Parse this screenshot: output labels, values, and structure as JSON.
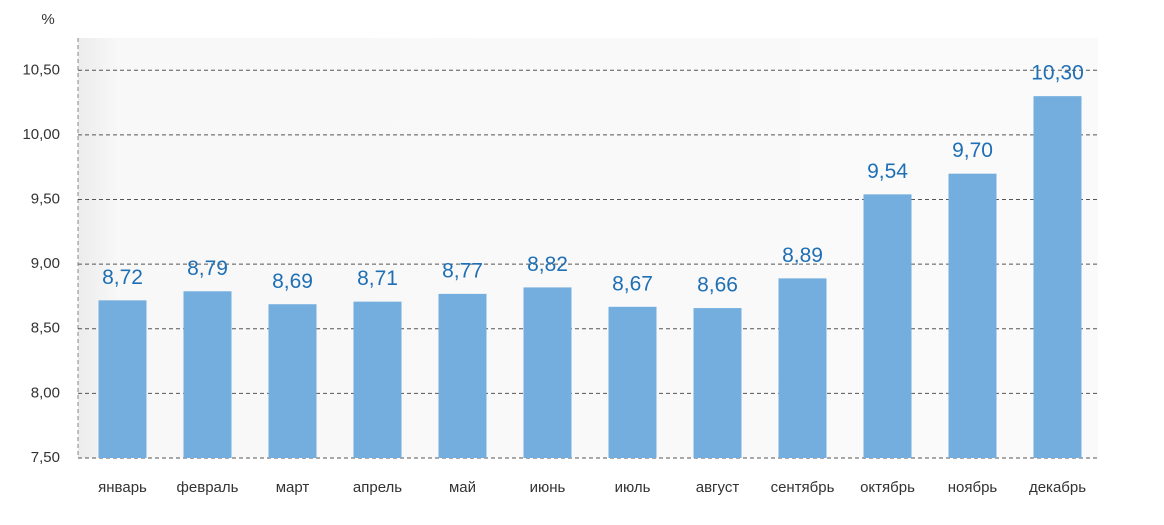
{
  "chart_data": {
    "type": "bar",
    "y_label": "%",
    "categories": [
      "январь",
      "февраль",
      "март",
      "апрель",
      "май",
      "июнь",
      "июль",
      "август",
      "сентябрь",
      "октябрь",
      "ноябрь",
      "декабрь"
    ],
    "values": [
      8.72,
      8.79,
      8.69,
      8.71,
      8.77,
      8.82,
      8.67,
      8.66,
      8.89,
      9.54,
      9.7,
      10.3
    ],
    "value_labels": [
      "8,72",
      "8,79",
      "8,69",
      "8,71",
      "8,77",
      "8,82",
      "8,67",
      "8,66",
      "8,89",
      "9,54",
      "9,70",
      "10,30"
    ],
    "color": "#74aede",
    "ylim": [
      7.5,
      10.75
    ],
    "yticks": [
      {
        "value": 7.5,
        "label": "7,50"
      },
      {
        "value": 8,
        "label": "8,00"
      },
      {
        "value": 8.5,
        "label": "8,50"
      },
      {
        "value": 9,
        "label": "9,00"
      },
      {
        "value": 9.5,
        "label": "9,50"
      },
      {
        "value": 10,
        "label": "10,00"
      },
      {
        "value": 10.5,
        "label": "10,50"
      }
    ],
    "grid": true
  }
}
